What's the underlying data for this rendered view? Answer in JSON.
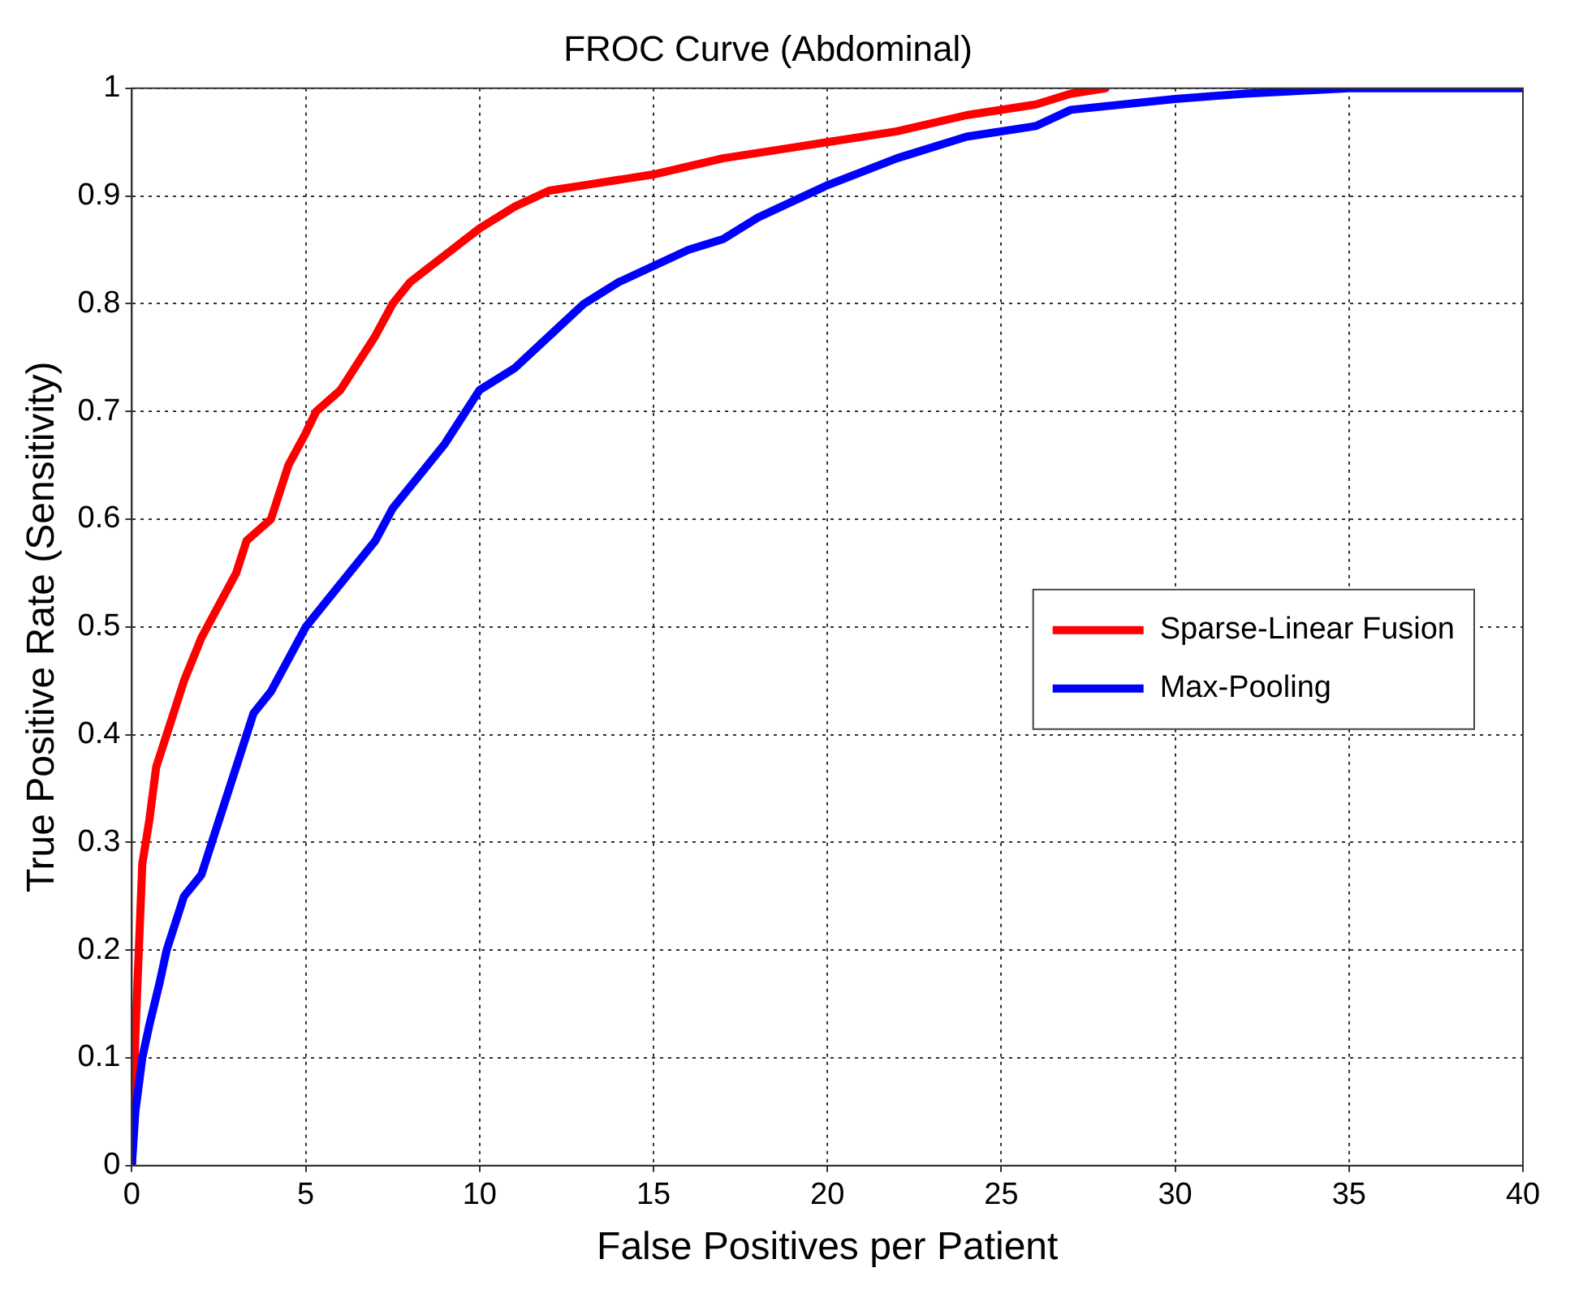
{
  "chart_data": {
    "type": "line",
    "title": "FROC Curve (Abdominal)",
    "xlabel": "False Positives per Patient",
    "ylabel": "True Positive Rate (Sensitivity)",
    "xlim": [
      0,
      40
    ],
    "xticks": [
      0,
      5,
      10,
      15,
      20,
      25,
      30,
      35,
      40
    ],
    "ylim": [
      0,
      1
    ],
    "yticks": [
      0,
      0.1,
      0.2,
      0.3,
      0.4,
      0.5,
      0.6,
      0.7,
      0.8,
      0.9,
      1
    ],
    "grid": true,
    "legend": "right",
    "marker": "none",
    "line_style": "solid",
    "series": [
      {
        "name": "Sparse-Linear Fusion",
        "color": "#ff0000",
        "x": [
          0,
          0.1,
          0.2,
          0.3,
          0.5,
          0.7,
          1,
          1.5,
          2,
          2.5,
          3,
          3.3,
          4,
          4.5,
          5,
          5.3,
          6,
          7,
          7.5,
          8,
          9,
          10,
          11,
          12,
          13,
          15,
          17,
          19,
          20,
          22,
          24,
          26,
          27,
          28
        ],
        "values": [
          0,
          0.12,
          0.2,
          0.28,
          0.32,
          0.37,
          0.4,
          0.45,
          0.49,
          0.52,
          0.55,
          0.58,
          0.6,
          0.65,
          0.68,
          0.7,
          0.72,
          0.77,
          0.8,
          0.82,
          0.845,
          0.87,
          0.89,
          0.905,
          0.91,
          0.92,
          0.935,
          0.945,
          0.95,
          0.96,
          0.975,
          0.985,
          0.995,
          1
        ]
      },
      {
        "name": "Max-Pooling",
        "color": "#0000ff",
        "x": [
          0,
          0.1,
          0.3,
          0.5,
          0.8,
          1,
          1.5,
          2,
          2.5,
          3,
          3.5,
          4,
          4.5,
          5,
          6,
          7,
          7.5,
          8,
          9,
          10,
          11,
          12,
          13,
          14,
          16,
          17,
          18,
          20,
          22,
          24,
          26,
          27,
          30,
          32,
          35,
          40
        ],
        "values": [
          0,
          0.05,
          0.1,
          0.13,
          0.17,
          0.2,
          0.25,
          0.27,
          0.32,
          0.37,
          0.42,
          0.44,
          0.47,
          0.5,
          0.54,
          0.58,
          0.61,
          0.63,
          0.67,
          0.72,
          0.74,
          0.77,
          0.8,
          0.82,
          0.85,
          0.86,
          0.88,
          0.91,
          0.935,
          0.955,
          0.965,
          0.98,
          0.99,
          0.995,
          1,
          1
        ]
      }
    ]
  }
}
